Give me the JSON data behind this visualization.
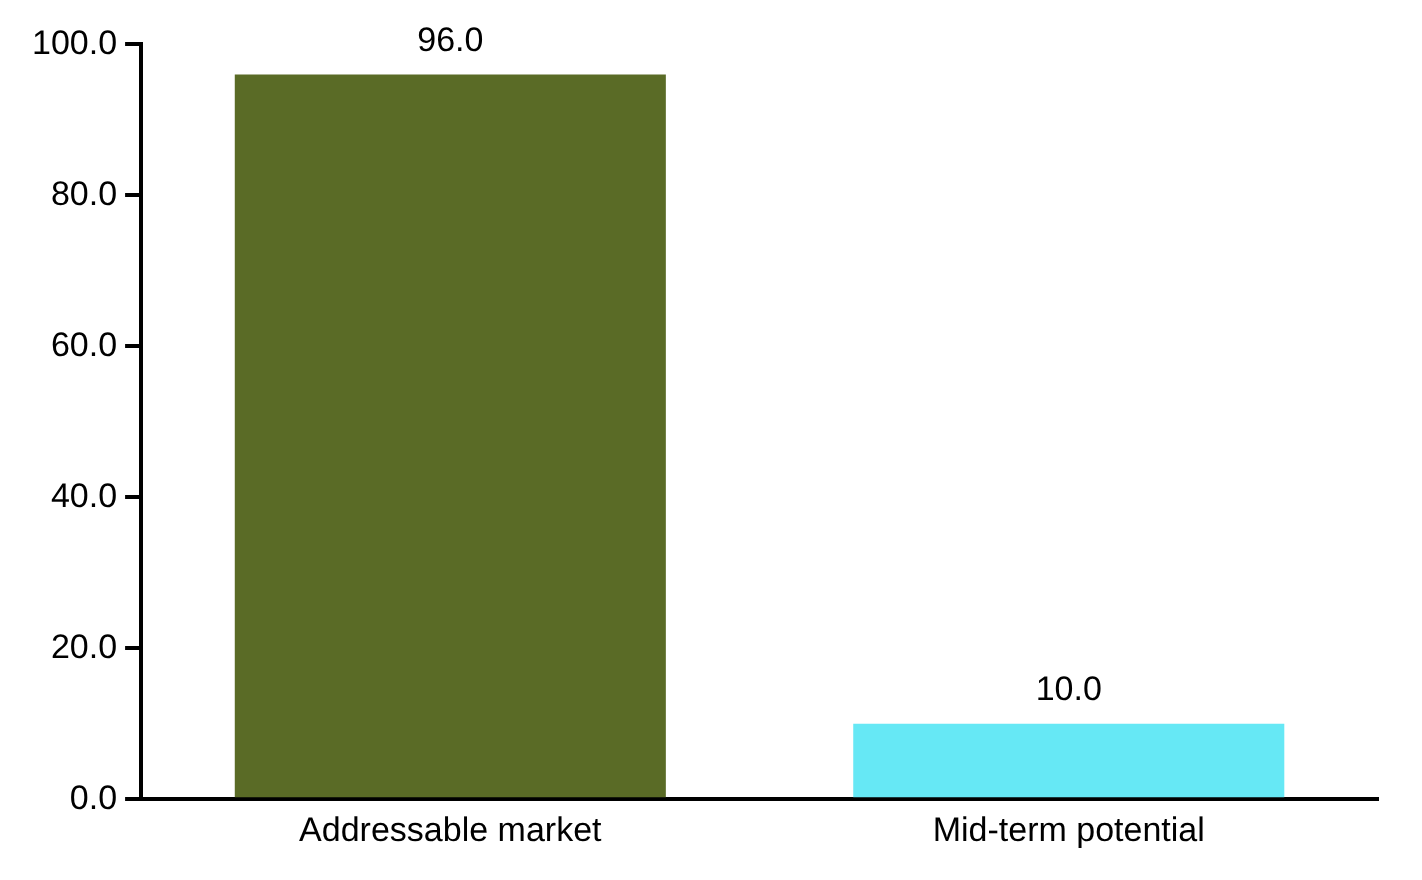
{
  "chart_data": {
    "type": "bar",
    "categories": [
      "Addressable market",
      "Mid-term potential"
    ],
    "values": [
      96,
      10
    ],
    "colors": [
      "#5a6b26",
      "#66e8f5"
    ],
    "value_labels": [
      "96.0",
      "10.0"
    ],
    "ylim": [
      0,
      100
    ],
    "yticks": [
      {
        "value": 0,
        "label": "0.0"
      },
      {
        "value": 20,
        "label": "20.0"
      },
      {
        "value": 40,
        "label": "40.0"
      },
      {
        "value": 60,
        "label": "60.0"
      },
      {
        "value": 80,
        "label": "80.0"
      },
      {
        "value": 100,
        "label": "100.0"
      }
    ],
    "grid": false,
    "legend": false
  }
}
